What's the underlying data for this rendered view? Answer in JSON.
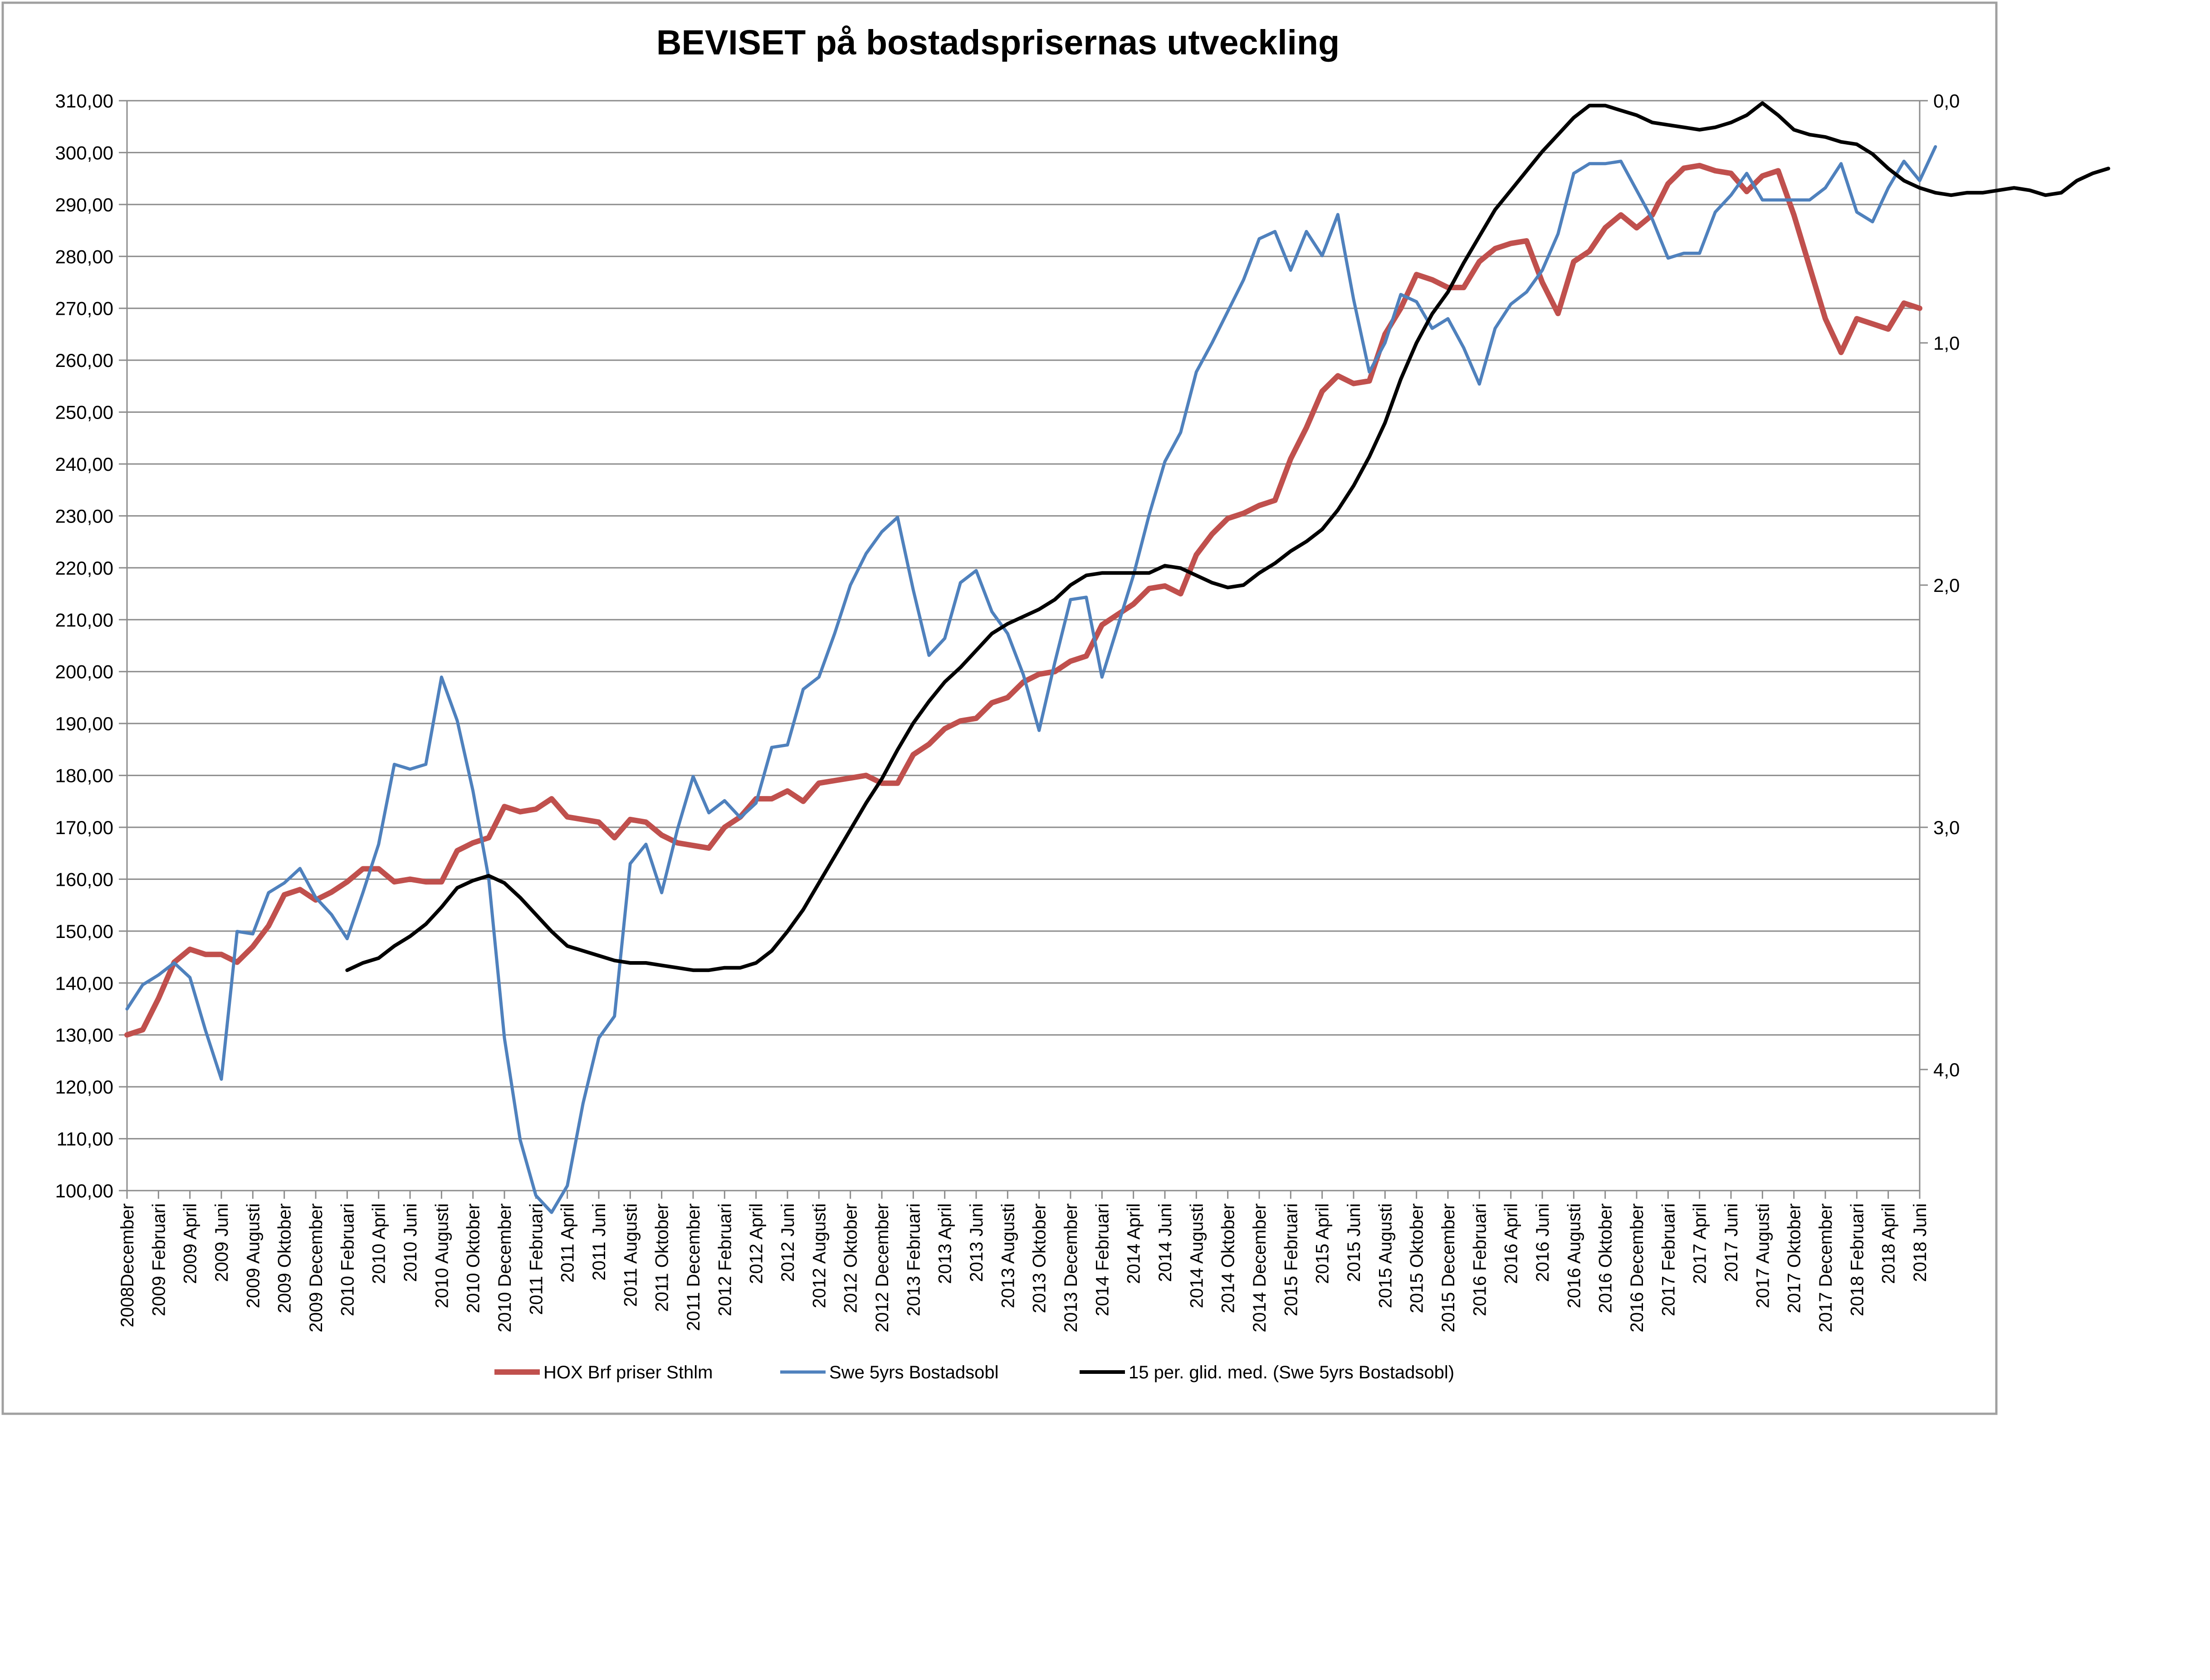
{
  "chart_data": {
    "type": "line",
    "title": "BEVISET på bostadsprisernas utveckling",
    "left_axis": {
      "ylim": [
        100,
        310
      ],
      "ticks": [
        "310,00",
        "300,00",
        "290,00",
        "280,00",
        "270,00",
        "260,00",
        "250,00",
        "240,00",
        "230,00",
        "220,00",
        "210,00",
        "200,00",
        "190,00",
        "180,00",
        "170,00",
        "160,00",
        "150,00",
        "140,00",
        "130,00",
        "120,00",
        "110,00",
        "100,00"
      ]
    },
    "right_axis": {
      "reversed": true,
      "ylim": [
        0.0,
        4.5
      ],
      "ticks": [
        {
          "value": 0.0,
          "label": "0,0"
        },
        {
          "value": 1.0,
          "label": "1,0"
        },
        {
          "value": 2.0,
          "label": "2,0"
        },
        {
          "value": 3.0,
          "label": "3,0"
        },
        {
          "value": 4.0,
          "label": "4,0"
        }
      ]
    },
    "x_ticks": [
      "2008December",
      "2009 Februari",
      "2009 April",
      "2009 Juni",
      "2009 Augusti",
      "2009 Oktober",
      "2009 December",
      "2010 Februari",
      "2010 April",
      "2010 Juni",
      "2010 Augusti",
      "2010 Oktober",
      "2010 December",
      "2011 Februari",
      "2011 April",
      "2011 Juni",
      "2011 Augusti",
      "2011 Oktober",
      "2011 December",
      "2012 Februari",
      "2012 April",
      "2012 Juni",
      "2012 Augusti",
      "2012 Oktober",
      "2012 December",
      "2013 Februari",
      "2013 April",
      "2013 Juni",
      "2013 Augusti",
      "2013 Oktober",
      "2013 December",
      "2014 Februari",
      "2014 April",
      "2014 Juni",
      "2014 Augusti",
      "2014 Oktober",
      "2014 December",
      "2015 Februari",
      "2015 April",
      "2015 Juni",
      "2015 Augusti",
      "2015 Oktober",
      "2015 December",
      "2016 Februari",
      "2016 April",
      "2016 Juni",
      "2016 Augusti",
      "2016 Oktober",
      "2016 December",
      "2017 Februari",
      "2017 April",
      "2017 Juni",
      "2017 Augusti",
      "2017 Oktober",
      "2017 December",
      "2018 Februari",
      "2018 April",
      "2018 Juni"
    ],
    "grid": true,
    "legend_position": "bottom",
    "series": [
      {
        "name": "HOX Brf priser Sthlm",
        "color": "#c0504d",
        "axis": "left",
        "values": [
          130,
          131,
          137,
          144,
          146.5,
          145.5,
          145.5,
          144,
          147,
          151,
          157,
          158,
          156,
          157.5,
          159.5,
          162,
          162,
          159.5,
          160,
          159.5,
          159.5,
          165.5,
          167,
          168,
          174,
          173,
          173.5,
          175.5,
          172,
          171.5,
          171,
          168,
          171.5,
          171,
          168.5,
          167,
          166.5,
          166,
          170,
          172,
          175.5,
          175.5,
          177,
          175,
          178.5,
          179,
          179.5,
          180,
          178.5,
          178.5,
          184,
          186,
          189,
          190.5,
          191,
          194,
          195,
          198,
          199.5,
          200,
          202,
          203,
          209,
          211,
          213,
          216,
          216.5,
          215,
          222.5,
          226.5,
          229.5,
          230.5,
          232,
          233,
          241,
          247,
          254,
          257,
          255.5,
          256,
          265,
          270,
          276.5,
          275.5,
          274,
          274,
          279,
          281.5,
          282.5,
          283,
          275,
          269,
          279,
          281,
          285.5,
          288,
          285.5,
          288,
          294,
          297,
          297.5,
          296.5,
          296,
          292.5,
          295.5,
          296.5,
          288,
          278,
          268,
          261.5,
          268,
          267,
          266,
          271,
          270
        ]
      },
      {
        "name": "Swe 5yrs Bostadsobl",
        "color": "#4f81bd",
        "axis": "right",
        "values": [
          3.75,
          3.65,
          3.61,
          3.56,
          3.62,
          3.84,
          4.04,
          3.43,
          3.44,
          3.27,
          3.23,
          3.17,
          3.29,
          3.36,
          3.46,
          3.27,
          3.07,
          2.74,
          2.76,
          2.74,
          2.38,
          2.56,
          2.85,
          3.21,
          3.87,
          4.29,
          4.52,
          4.59,
          4.48,
          4.14,
          3.87,
          3.78,
          3.15,
          3.07,
          3.27,
          3.01,
          2.79,
          2.94,
          2.89,
          2.96,
          2.9,
          2.67,
          2.66,
          2.43,
          2.38,
          2.2,
          2.0,
          1.87,
          1.78,
          1.72,
          2.02,
          2.29,
          2.22,
          1.99,
          1.94,
          2.11,
          2.2,
          2.37,
          2.6,
          2.32,
          2.06,
          2.05,
          2.38,
          2.17,
          1.96,
          1.71,
          1.49,
          1.37,
          1.12,
          1.0,
          0.87,
          0.74,
          0.57,
          0.54,
          0.7,
          0.54,
          0.64,
          0.47,
          0.82,
          1.12,
          1.0,
          0.8,
          0.83,
          0.94,
          0.9,
          1.02,
          1.17,
          0.94,
          0.84,
          0.79,
          0.7,
          0.55,
          0.3,
          0.26,
          0.26,
          0.25,
          0.37,
          0.49,
          0.65,
          0.63,
          0.63,
          0.46,
          0.39,
          0.3,
          0.41,
          0.41,
          0.41,
          0.41,
          0.36,
          0.26,
          0.46,
          0.5,
          0.36,
          0.25,
          0.33,
          0.19
        ]
      },
      {
        "name": "15 per. glid. med. (Swe 5yrs Bostadsobl)",
        "color": "#000000",
        "axis": "right",
        "start_index": 14,
        "values": [
          3.59,
          3.56,
          3.54,
          3.49,
          3.45,
          3.4,
          3.33,
          3.25,
          3.22,
          3.2,
          3.23,
          3.29,
          3.36,
          3.43,
          3.49,
          3.51,
          3.53,
          3.55,
          3.56,
          3.56,
          3.57,
          3.58,
          3.59,
          3.59,
          3.58,
          3.58,
          3.56,
          3.51,
          3.43,
          3.34,
          3.23,
          3.12,
          3.01,
          2.9,
          2.8,
          2.68,
          2.57,
          2.48,
          2.4,
          2.34,
          2.27,
          2.2,
          2.16,
          2.13,
          2.1,
          2.06,
          2.0,
          1.96,
          1.95,
          1.95,
          1.95,
          1.95,
          1.92,
          1.93,
          1.96,
          1.99,
          2.01,
          2.0,
          1.95,
          1.91,
          1.86,
          1.82,
          1.77,
          1.69,
          1.59,
          1.47,
          1.33,
          1.15,
          1.0,
          0.88,
          0.79,
          0.67,
          0.56,
          0.45,
          0.37,
          0.29,
          0.21,
          0.14,
          0.07,
          0.02,
          0.02,
          0.04,
          0.06,
          0.09,
          0.1,
          0.11,
          0.12,
          0.11,
          0.09,
          0.06,
          0.01,
          0.06,
          0.12,
          0.14,
          0.15,
          0.17,
          0.18,
          0.22,
          0.28,
          0.33,
          0.36,
          0.38,
          0.39,
          0.38,
          0.38,
          0.37,
          0.36,
          0.37,
          0.39,
          0.38,
          0.33,
          0.3,
          0.28
        ]
      }
    ]
  }
}
